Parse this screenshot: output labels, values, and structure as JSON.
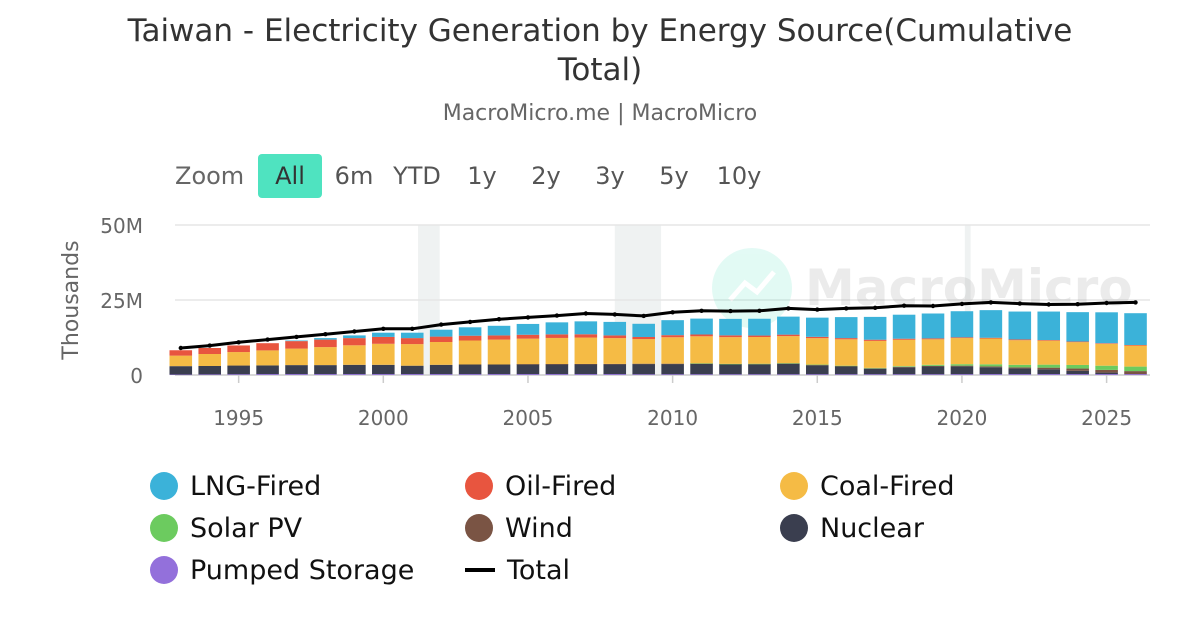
{
  "header": {
    "title": "Taiwan - Electricity Generation by Energy Source(Cumulative Total)",
    "subtitle": "MacroMicro.me | MacroMicro"
  },
  "zoom": {
    "label": "Zoom",
    "buttons": [
      "All",
      "6m",
      "YTD",
      "1y",
      "2y",
      "3y",
      "5y",
      "10y"
    ],
    "active": "All"
  },
  "watermark": "MacroMicro",
  "colors": {
    "lng": "#3bb2d9",
    "oil": "#e8553f",
    "coal": "#f5bb45",
    "solar": "#6ccb5f",
    "wind": "#7a5444",
    "nuclear": "#3a3e4f",
    "pumped": "#9370db",
    "total": "#000000",
    "zoom_active": "#4fe3c0"
  },
  "chart_data": {
    "type": "bar",
    "stacked": true,
    "title": "Taiwan - Electricity Generation by Energy Source(Cumulative Total)",
    "subtitle": "MacroMicro.me | MacroMicro",
    "ylabel": "Thousands",
    "ylim": [
      0,
      50000000
    ],
    "yticks": [
      "0",
      "25M",
      "50M"
    ],
    "xticks": [
      "1995",
      "2000",
      "2005",
      "2010",
      "2015",
      "2020",
      "2025"
    ],
    "xlim": [
      1992.8,
      2026.5
    ],
    "grid": true,
    "legend_position": "bottom",
    "shaded_periods": [
      [
        2001.2,
        2001.95
      ],
      [
        2008.0,
        2009.6
      ],
      [
        2020.1,
        2020.3
      ]
    ],
    "x": [
      1993,
      1994,
      1995,
      1996,
      1997,
      1998,
      1999,
      2000,
      2001,
      2002,
      2003,
      2004,
      2005,
      2006,
      2007,
      2008,
      2009,
      2010,
      2011,
      2012,
      2013,
      2014,
      2015,
      2016,
      2017,
      2018,
      2019,
      2020,
      2021,
      2022,
      2023,
      2024,
      2025,
      2026
    ],
    "series": [
      {
        "name": "LNG-Fired",
        "values": [
          0,
          0,
          0,
          0,
          200000,
          500000,
          900000,
          1400000,
          1800000,
          2300000,
          2800000,
          3200000,
          3600000,
          4000000,
          4300000,
          4500000,
          4400000,
          5000000,
          5300000,
          5500000,
          5600000,
          6000000,
          6400000,
          7000000,
          7600000,
          8000000,
          8300000,
          8700000,
          9200000,
          9300000,
          9500000,
          9800000,
          10300000,
          10600000
        ]
      },
      {
        "name": "Oil-Fired",
        "values": [
          1800000,
          2000000,
          2200000,
          2400000,
          2500000,
          2500000,
          2400000,
          2300000,
          2000000,
          1800000,
          1600000,
          1400000,
          1300000,
          1200000,
          1100000,
          900000,
          700000,
          700000,
          600000,
          600000,
          500000,
          500000,
          450000,
          400000,
          400000,
          350000,
          300000,
          250000,
          250000,
          250000,
          200000,
          200000,
          200000,
          200000
        ]
      },
      {
        "name": "Coal-Fired",
        "values": [
          3500000,
          4000000,
          4500000,
          5000000,
          5500000,
          6000000,
          6500000,
          7000000,
          7200000,
          7600000,
          8000000,
          8300000,
          8500000,
          8700000,
          8800000,
          8600000,
          8200000,
          8800000,
          9000000,
          8900000,
          8900000,
          9000000,
          8800000,
          8800000,
          9000000,
          8800000,
          8500000,
          8700000,
          8600000,
          8200000,
          8000000,
          7600000,
          7300000,
          7000000
        ]
      },
      {
        "name": "Solar PV",
        "values": [
          0,
          0,
          0,
          0,
          0,
          0,
          0,
          0,
          0,
          0,
          0,
          0,
          0,
          0,
          0,
          0,
          0,
          0,
          10000,
          20000,
          40000,
          50000,
          70000,
          90000,
          140000,
          220000,
          350000,
          500000,
          700000,
          850000,
          1000000,
          1200000,
          1400000,
          1500000
        ]
      },
      {
        "name": "Wind",
        "values": [
          0,
          0,
          0,
          0,
          0,
          0,
          0,
          0,
          0,
          0,
          0,
          0,
          20000,
          50000,
          80000,
          100000,
          120000,
          130000,
          140000,
          140000,
          160000,
          160000,
          150000,
          160000,
          180000,
          180000,
          200000,
          230000,
          270000,
          350000,
          550000,
          750000,
          900000,
          1000000
        ]
      },
      {
        "name": "Nuclear",
        "values": [
          2800000,
          2800000,
          2900000,
          2900000,
          3000000,
          3000000,
          3100000,
          3100000,
          2800000,
          3100000,
          3200000,
          3200000,
          3300000,
          3300000,
          3300000,
          3300000,
          3400000,
          3400000,
          3500000,
          3300000,
          3300000,
          3500000,
          3000000,
          2600000,
          1800000,
          2300000,
          2600000,
          2600000,
          2300000,
          1900000,
          1600000,
          1100000,
          500000,
          0
        ]
      },
      {
        "name": "Pumped Storage",
        "values": [
          150000,
          200000,
          250000,
          300000,
          300000,
          300000,
          300000,
          300000,
          300000,
          300000,
          300000,
          300000,
          300000,
          300000,
          300000,
          300000,
          250000,
          250000,
          250000,
          250000,
          250000,
          250000,
          250000,
          250000,
          250000,
          250000,
          250000,
          280000,
          300000,
          300000,
          300000,
          300000,
          300000,
          300000
        ]
      },
      {
        "name": "Total",
        "type": "line",
        "values": [
          9000000,
          9800000,
          10900000,
          11800000,
          12700000,
          13600000,
          14500000,
          15400000,
          15400000,
          16800000,
          17700000,
          18600000,
          19200000,
          19800000,
          20500000,
          20200000,
          19700000,
          20900000,
          21400000,
          21300000,
          21400000,
          22200000,
          21800000,
          22200000,
          22400000,
          23100000,
          23000000,
          23700000,
          24200000,
          23800000,
          23500000,
          23600000,
          24000000,
          24200000
        ]
      }
    ]
  },
  "legend": [
    {
      "label": "LNG-Fired",
      "color_key": "lng",
      "kind": "dot"
    },
    {
      "label": "Oil-Fired",
      "color_key": "oil",
      "kind": "dot"
    },
    {
      "label": "Coal-Fired",
      "color_key": "coal",
      "kind": "dot"
    },
    {
      "label": "Solar PV",
      "color_key": "solar",
      "kind": "dot"
    },
    {
      "label": "Wind",
      "color_key": "wind",
      "kind": "dot"
    },
    {
      "label": "Nuclear",
      "color_key": "nuclear",
      "kind": "dot"
    },
    {
      "label": "Pumped Storage",
      "color_key": "pumped",
      "kind": "dot"
    },
    {
      "label": "Total",
      "color_key": "total",
      "kind": "line"
    }
  ]
}
